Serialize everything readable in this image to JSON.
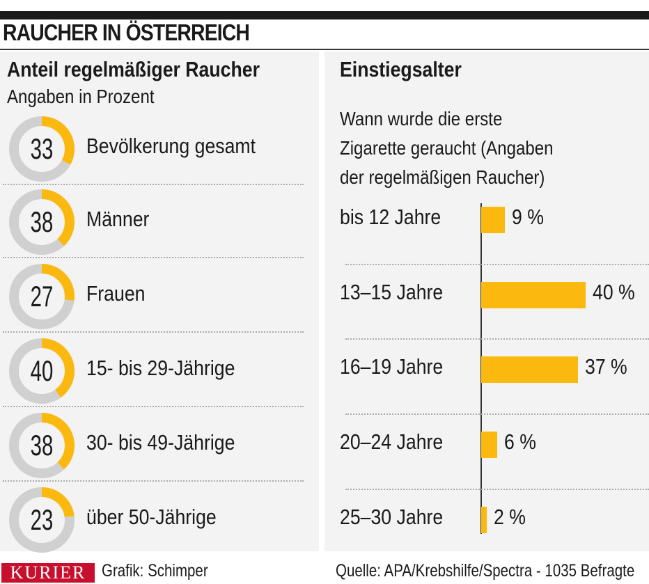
{
  "header": {
    "title": "RAUCHER IN ÖSTERREICH"
  },
  "left": {
    "title": "Anteil regelmäßiger Raucher",
    "subtitle": "Angaben in Prozent"
  },
  "right": {
    "title": "Einstiegsalter",
    "subtitle_lines": [
      "Wann wurde die erste",
      "Zigarette geraucht (Angaben",
      "der regelmäßigen Raucher)"
    ]
  },
  "footer": {
    "logo": "KURIER",
    "credit": "Grafik: Schimper",
    "source": "Quelle: APA/Krebshilfe/Spectra - 1035 Befragte"
  },
  "colors": {
    "accent": "#fbb910",
    "track": "#d0d0d0",
    "logo": "#c8102e"
  },
  "chart_data": [
    {
      "type": "pie",
      "title": "Anteil regelmäßiger Raucher",
      "subtitle": "Angaben in Prozent",
      "categories": [
        "Bevölkerung gesamt",
        "Männer",
        "Frauen",
        "15- bis 29-Jährige",
        "30- bis 49-Jährige",
        "über 50-Jährige"
      ],
      "values": [
        33,
        38,
        27,
        40,
        38,
        23
      ],
      "labels": [
        "33",
        "38",
        "27",
        "40",
        "38",
        "23"
      ]
    },
    {
      "type": "bar",
      "title": "Einstiegsalter",
      "subtitle": "Wann wurde die erste Zigarette geraucht (Angaben der regelmäßigen Raucher)",
      "categories": [
        "bis 12 Jahre",
        "13–15 Jahre",
        "16–19 Jahre",
        "20–24 Jahre",
        "25–30 Jahre"
      ],
      "values": [
        9,
        40,
        37,
        6,
        2
      ],
      "labels": [
        "9 %",
        "40 %",
        "37 %",
        "6 %",
        "2 %"
      ],
      "xlim": [
        0,
        40
      ],
      "orientation": "horizontal"
    }
  ]
}
